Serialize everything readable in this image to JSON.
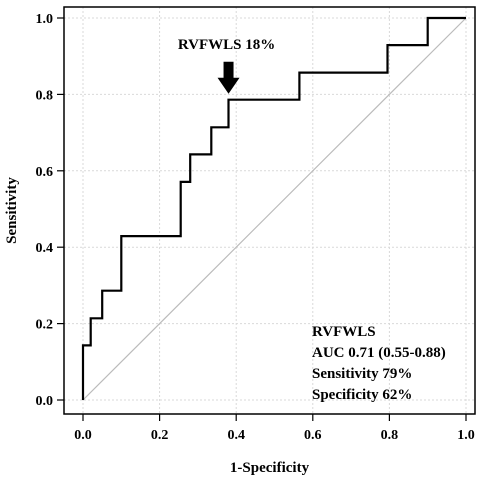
{
  "chart_data": {
    "type": "line",
    "title": "",
    "xlabel": "1-Specificity",
    "ylabel": "Sensitivity",
    "xlim": [
      0,
      1
    ],
    "ylim": [
      0,
      1
    ],
    "grid": true,
    "x_ticks": [
      "0.0",
      "0.2",
      "0.4",
      "0.6",
      "0.8",
      "1.0"
    ],
    "y_ticks": [
      "0.0",
      "0.2",
      "0.4",
      "0.6",
      "0.8",
      "1.0"
    ],
    "series": [
      {
        "name": "",
        "step": true,
        "x": [
          0.0,
          0.0,
          0.02,
          0.02,
          0.05,
          0.05,
          0.1,
          0.1,
          0.255,
          0.255,
          0.28,
          0.28,
          0.31,
          0.31,
          0.335,
          0.335,
          0.38,
          0.38,
          0.54,
          0.54,
          0.565,
          0.565,
          0.795,
          0.795,
          0.9,
          0.9,
          1.0
        ],
        "y": [
          0.0,
          0.143,
          0.143,
          0.214,
          0.214,
          0.286,
          0.286,
          0.429,
          0.429,
          0.571,
          0.571,
          0.643,
          0.643,
          0.643,
          0.643,
          0.714,
          0.714,
          0.786,
          0.786,
          0.786,
          0.786,
          0.857,
          0.857,
          0.929,
          0.929,
          1.0,
          1.0
        ]
      }
    ],
    "reference_line": {
      "x": [
        0,
        1
      ],
      "y": [
        0,
        1
      ]
    },
    "annotation": {
      "text": "RVFWLS 18%",
      "point": {
        "x": 0.38,
        "y": 0.786
      }
    },
    "stats_box": [
      "RVFWLS",
      "AUC 0.71 (0.55-0.88)",
      "Sensitivity 79%",
      "Specificity 62%"
    ]
  },
  "colors": {
    "curve": "#000000",
    "reference": "#bbbbbb",
    "grid": "#d9d9d9",
    "frame": "#000000"
  }
}
